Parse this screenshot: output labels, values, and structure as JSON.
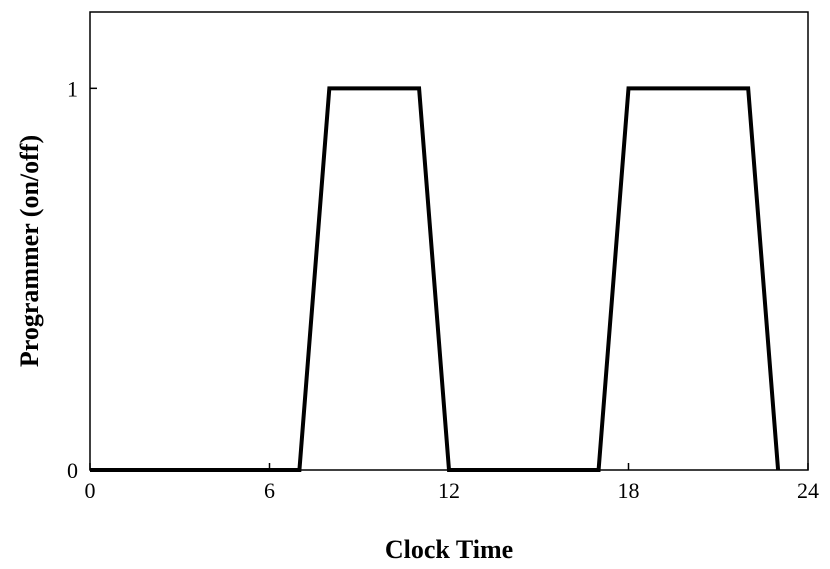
{
  "chart_data": {
    "type": "line",
    "title": "",
    "xlabel": "Clock Time",
    "ylabel": "Programmer (on/off)",
    "xlim": [
      0,
      24
    ],
    "ylim": [
      0,
      1.2
    ],
    "x_ticks": [
      0,
      6,
      12,
      18,
      24
    ],
    "x_tick_labels": [
      "0",
      "6",
      "12",
      "18",
      "24"
    ],
    "y_ticks": [
      0,
      1
    ],
    "y_tick_labels": [
      "0",
      "1"
    ],
    "grid": false,
    "legend": "none",
    "series": [
      {
        "color": "#000000",
        "x": [
          0,
          7,
          8,
          11,
          12,
          17,
          18,
          22,
          23
        ],
        "y": [
          0,
          0,
          1,
          1,
          0,
          0,
          1,
          1,
          0
        ]
      }
    ]
  }
}
